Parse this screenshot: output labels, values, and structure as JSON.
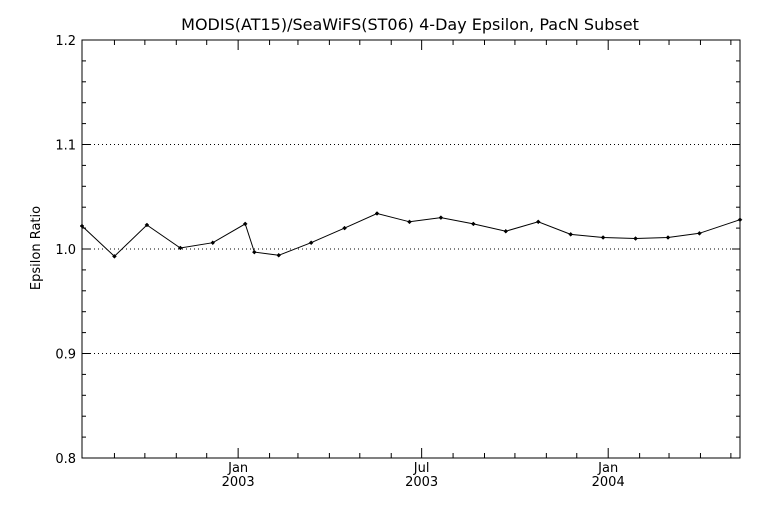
{
  "chart_data": {
    "type": "line",
    "title": "MODIS(AT15)/SeaWiFS(ST06) 4-Day Epsilon, PacN Subset",
    "xlabel": "",
    "ylabel": "Epsilon Ratio",
    "ylim": [
      0.8,
      1.2
    ],
    "xlim": [
      "2002-07-31",
      "2004-05-10"
    ],
    "yticks": [
      "0.8",
      "0.9",
      "1.0",
      "1.1",
      "1.2"
    ],
    "xticks": [
      {
        "date": "2003-01-01",
        "month": "Jan",
        "year": "2003"
      },
      {
        "date": "2003-07-01",
        "month": "Jul",
        "year": "2003"
      },
      {
        "date": "2004-01-01",
        "month": "Jan",
        "year": "2004"
      }
    ],
    "x_minor_ticks": [
      "2002-09-01",
      "2002-10-01",
      "2002-11-01",
      "2002-12-01",
      "2003-02-01",
      "2003-03-01",
      "2003-04-01",
      "2003-05-01",
      "2003-06-01",
      "2003-08-01",
      "2003-09-01",
      "2003-10-01",
      "2003-11-01",
      "2003-12-01",
      "2004-02-01",
      "2004-03-01",
      "2004-04-01",
      "2004-05-01"
    ],
    "grid": "dotted horizontal at 0.9, 1.0, 1.1",
    "series": [
      {
        "x": [
          "2002-07-31",
          "2002-09-01",
          "2002-10-03",
          "2002-11-05",
          "2002-12-07",
          "2003-01-08",
          "2003-01-17",
          "2003-02-10",
          "2003-03-14",
          "2003-04-16",
          "2003-05-18",
          "2003-06-19",
          "2003-07-20",
          "2003-08-21",
          "2003-09-22",
          "2003-10-24",
          "2003-11-25",
          "2003-12-27",
          "2004-01-28",
          "2004-02-29",
          "2004-03-31",
          "2004-05-10"
        ],
        "values": [
          1.022,
          0.993,
          1.023,
          1.001,
          1.006,
          1.024,
          0.997,
          0.994,
          1.006,
          1.02,
          1.034,
          1.026,
          1.03,
          1.024,
          1.017,
          1.026,
          1.014,
          1.011,
          1.01,
          1.011,
          1.015,
          1.028
        ]
      }
    ]
  }
}
